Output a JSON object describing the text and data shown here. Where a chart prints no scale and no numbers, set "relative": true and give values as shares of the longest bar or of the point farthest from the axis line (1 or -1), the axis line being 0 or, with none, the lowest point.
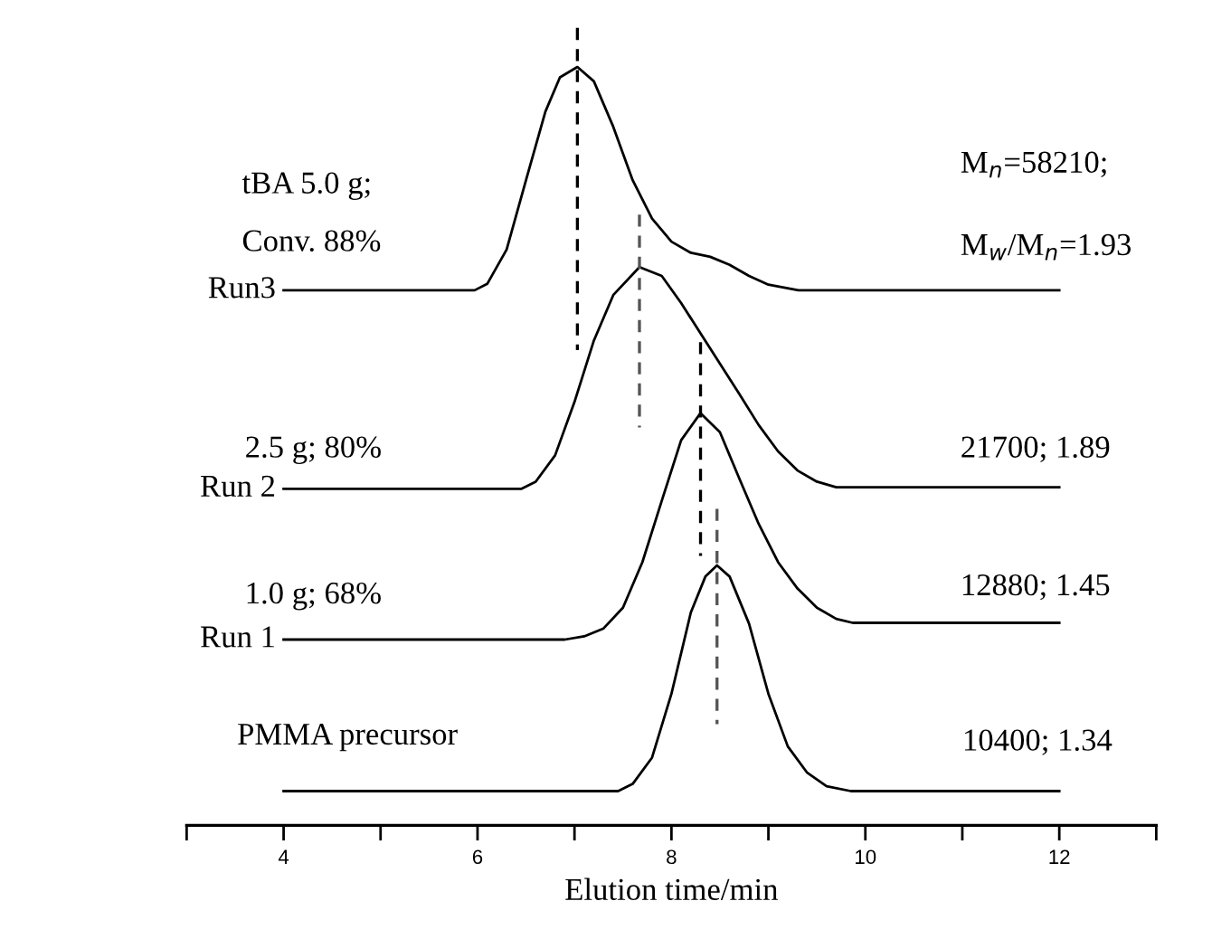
{
  "chart_data": {
    "type": "line",
    "relative": true,
    "xlabel": "Elution time/min",
    "xlim": [
      3,
      13
    ],
    "xticks": [
      {
        "value": 3,
        "label": null
      },
      4,
      {
        "value": 5,
        "label": null
      },
      6,
      {
        "value": 7,
        "label": null
      },
      8,
      {
        "value": 9,
        "label": null
      },
      10,
      {
        "value": 11,
        "label": null
      },
      12,
      {
        "value": 13,
        "label": null
      }
    ],
    "tick_labels": "x",
    "grid": false,
    "legend": false,
    "marker": "none",
    "line_style": "solid",
    "series": [
      {
        "name": "Run3",
        "color": "#000000",
        "x": [
          4,
          5.97,
          6.1,
          6.3,
          6.5,
          6.7,
          6.85,
          7.03,
          7.2,
          7.4,
          7.6,
          7.8,
          8.0,
          8.2,
          8.4,
          8.6,
          8.8,
          9.0,
          9.31,
          12
        ],
        "values": [
          0.671,
          0.671,
          0.679,
          0.722,
          0.809,
          0.895,
          0.938,
          0.951,
          0.933,
          0.876,
          0.809,
          0.761,
          0.732,
          0.718,
          0.713,
          0.703,
          0.689,
          0.678,
          0.671,
          0.671
        ]
      },
      {
        "name": "Run 2",
        "color": "#000000",
        "x": [
          4,
          6.45,
          6.6,
          6.8,
          7.0,
          7.2,
          7.4,
          7.67,
          7.9,
          8.1,
          8.3,
          8.5,
          8.7,
          8.9,
          9.1,
          9.3,
          9.5,
          9.7,
          12
        ],
        "values": [
          0.422,
          0.422,
          0.431,
          0.464,
          0.531,
          0.608,
          0.665,
          0.7,
          0.689,
          0.655,
          0.617,
          0.579,
          0.541,
          0.502,
          0.469,
          0.445,
          0.431,
          0.424,
          0.424
        ]
      },
      {
        "name": "Run 1",
        "color": "#000000",
        "x": [
          4,
          6.9,
          7.1,
          7.3,
          7.5,
          7.7,
          7.9,
          8.1,
          8.3,
          8.5,
          8.7,
          8.9,
          9.1,
          9.3,
          9.5,
          9.7,
          9.87,
          12
        ],
        "values": [
          0.233,
          0.233,
          0.237,
          0.247,
          0.273,
          0.33,
          0.407,
          0.483,
          0.517,
          0.493,
          0.435,
          0.378,
          0.33,
          0.297,
          0.273,
          0.259,
          0.254,
          0.254
        ]
      },
      {
        "name": "PMMA precursor",
        "color": "#000000",
        "x": [
          4,
          7.45,
          7.6,
          7.8,
          8.0,
          8.2,
          8.35,
          8.47,
          8.6,
          8.8,
          9.0,
          9.2,
          9.4,
          9.6,
          9.85,
          12
        ],
        "values": [
          0.043,
          0.043,
          0.052,
          0.085,
          0.165,
          0.267,
          0.312,
          0.326,
          0.312,
          0.253,
          0.165,
          0.099,
          0.066,
          0.049,
          0.043,
          0.043
        ]
      },
      {
        "color": "#000000",
        "line_style": "dashed",
        "x": [
          7.03,
          7.03
        ],
        "values": [
          1.0,
          0.596
        ]
      },
      {
        "color": "#555555",
        "line_style": "dashed",
        "x": [
          7.67,
          7.67
        ],
        "values": [
          0.766,
          0.499
        ]
      },
      {
        "color": "#000000",
        "line_style": "dashed",
        "x": [
          8.3,
          8.3
        ],
        "values": [
          0.606,
          0.338
        ]
      },
      {
        "color": "#555555",
        "line_style": "dashed",
        "x": [
          8.47,
          8.47
        ],
        "values": [
          0.397,
          0.127
        ]
      }
    ],
    "annotations": [
      "tBA 5.0 g;",
      "Conv. 88%",
      "2.5 g; 80%",
      "1.0 g; 68%",
      "M$_{n}$=58210;",
      "M$_{w}$/M$_{n}$=1.93",
      "21700; 1.89",
      "12880; 1.45",
      "10400; 1.34"
    ]
  }
}
